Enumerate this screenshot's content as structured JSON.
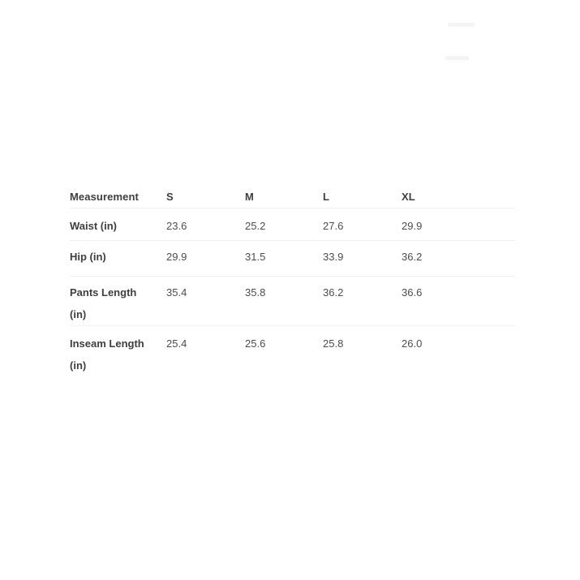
{
  "colors": {
    "text_primary": "#3e3e3e",
    "text_secondary": "#4c4c4c",
    "divider": "#f1f1f1",
    "artifact": "#f4f4f4",
    "page_bg": "#ffffff"
  },
  "chart_data": {
    "type": "table",
    "columns": [
      "Measurement",
      "S",
      "M",
      "L",
      "XL"
    ],
    "rows": [
      {
        "label": "Waist (in)",
        "values": [
          "23.6",
          "25.2",
          "27.6",
          "29.9"
        ]
      },
      {
        "label": "Hip (in)",
        "values": [
          "29.9",
          "31.5",
          "33.9",
          "36.2"
        ]
      },
      {
        "label": "Pants Length (in)",
        "values": [
          "35.4",
          "35.8",
          "36.2",
          "36.6"
        ]
      },
      {
        "label": "Inseam Length (in)",
        "values": [
          "25.4",
          "25.6",
          "25.8",
          "26.0"
        ]
      }
    ]
  }
}
